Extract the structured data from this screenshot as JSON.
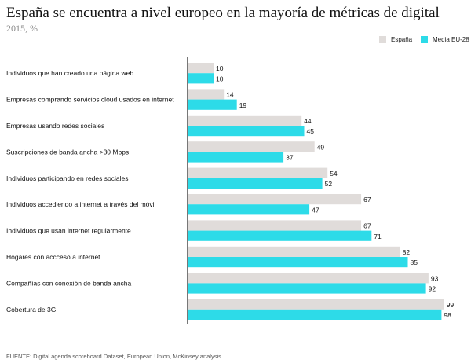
{
  "header": {
    "title": "España se encuentra a nivel europeo en la mayoría de métricas de digital",
    "subtitle": "2015, %"
  },
  "legend": {
    "position": "top-right",
    "items": [
      {
        "label": "España",
        "color": "#e0dcda"
      },
      {
        "label": "Media EU-28",
        "color": "#2ddbe8"
      }
    ]
  },
  "footer": {
    "source": "FUENTE: Digital agenda scoreboard Dataset, European Union, McKinsey analysis"
  },
  "colors": {
    "espana": "#e0dcda",
    "eu": "#2ddbe8",
    "axis": "#555555"
  },
  "chart_data": {
    "type": "bar",
    "orientation": "horizontal",
    "categories": [
      "Individuos que han creado una página web",
      "Empresas comprando servicios cloud usados en internet",
      "Empresas usando redes sociales",
      "Suscripciones de banda ancha >30 Mbps",
      "Individuos participando en redes sociales",
      "Individuos accediendo a internet a través del móvil",
      "Individuos que usan internet regularmente",
      "Hogares con accceso a internet",
      "Compañías con conexión de banda ancha",
      "Cobertura de 3G"
    ],
    "series": [
      {
        "name": "España",
        "values": [
          10,
          14,
          44,
          49,
          54,
          67,
          67,
          82,
          93,
          99
        ]
      },
      {
        "name": "Media EU-28",
        "values": [
          10,
          19,
          45,
          37,
          52,
          47,
          71,
          85,
          92,
          98
        ]
      }
    ],
    "xlim": [
      0,
      100
    ],
    "grid": false,
    "data_labels": true
  }
}
